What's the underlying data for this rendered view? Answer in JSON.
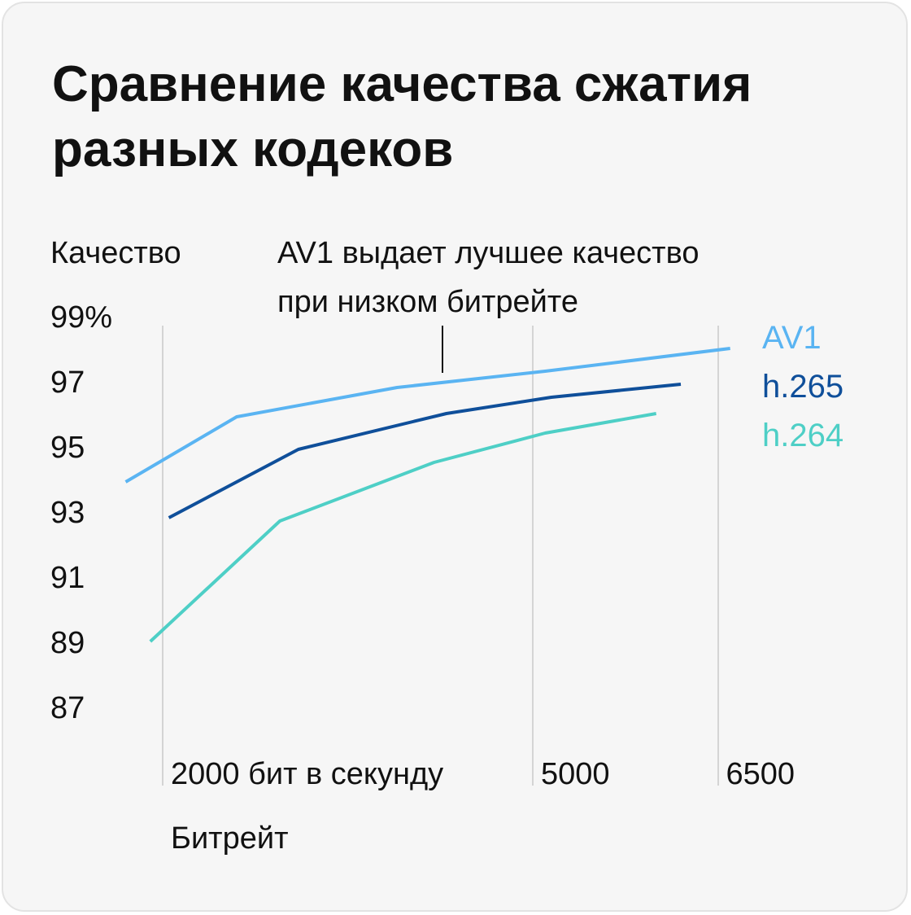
{
  "title": "Сравнение качества сжатия разных кодеков",
  "annotation": "AV1 выдает лучшее качество при низком битрейте",
  "annotation_lines": [
    "AV1 выдает лучшее качество",
    "при низком битрейте"
  ],
  "colors": {
    "background": "#f6f6f6",
    "text": "#111111",
    "grid": "#d4d4d4",
    "av1": "#5ab4f2",
    "h265": "#0f4f9a",
    "h264": "#4ecfc6"
  },
  "chart_data": {
    "type": "line",
    "title": "Сравнение качества сжатия разных кодеков",
    "ylabel": "Качество",
    "xlabel": "Битрейт",
    "yticks": [
      "99%",
      "97",
      "95",
      "93",
      "91",
      "89",
      "87"
    ],
    "ytick_values": [
      99,
      97,
      95,
      93,
      91,
      89,
      87
    ],
    "xticks": [
      "2000 бит в секунду",
      "5000",
      "6500"
    ],
    "xtick_values": [
      2000,
      5000,
      6500
    ],
    "ylim": [
      87,
      99
    ],
    "grid": "vertical lines at x ticks",
    "legend": "right of plot, labels next to line ends",
    "series": [
      {
        "name": "AV1",
        "color": "#5ab4f2",
        "x": [
          1700,
          2600,
          3900,
          5100,
          6600
        ],
        "y": [
          93.9,
          95.9,
          96.8,
          97.3,
          98.0
        ]
      },
      {
        "name": "h.265",
        "color": "#0f4f9a",
        "x": [
          2050,
          3100,
          4300,
          5150,
          6200
        ],
        "y": [
          92.8,
          94.9,
          96.0,
          96.5,
          96.9
        ]
      },
      {
        "name": "h.264",
        "color": "#4ecfc6",
        "x": [
          1900,
          2950,
          4200,
          5100,
          6000
        ],
        "y": [
          89.0,
          92.7,
          94.5,
          95.4,
          96.0
        ]
      }
    ]
  }
}
